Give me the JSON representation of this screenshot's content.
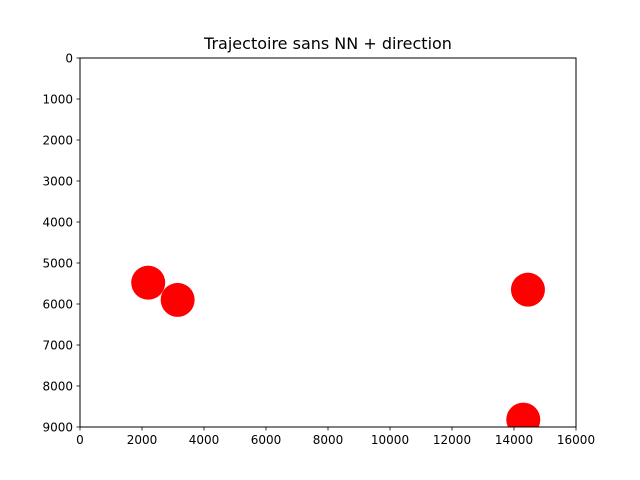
{
  "chart_data": {
    "type": "scatter",
    "title": "Trajectoire sans NN + direction",
    "xlabel": "",
    "ylabel": "",
    "xlim": [
      0,
      16000
    ],
    "ylim": [
      9000,
      0
    ],
    "y_inverted": true,
    "x_ticks": [
      0,
      2000,
      4000,
      6000,
      8000,
      10000,
      12000,
      14000,
      16000
    ],
    "y_ticks": [
      0,
      1000,
      2000,
      3000,
      4000,
      5000,
      6000,
      7000,
      8000,
      9000
    ],
    "grid": false,
    "legend": "none",
    "series": [
      {
        "color": "#ff0000",
        "points": [
          {
            "x": 2200,
            "y": 5480
          },
          {
            "x": 3150,
            "y": 5900
          },
          {
            "x": 14450,
            "y": 5650
          },
          {
            "x": 14300,
            "y": 8820
          }
        ]
      }
    ]
  }
}
